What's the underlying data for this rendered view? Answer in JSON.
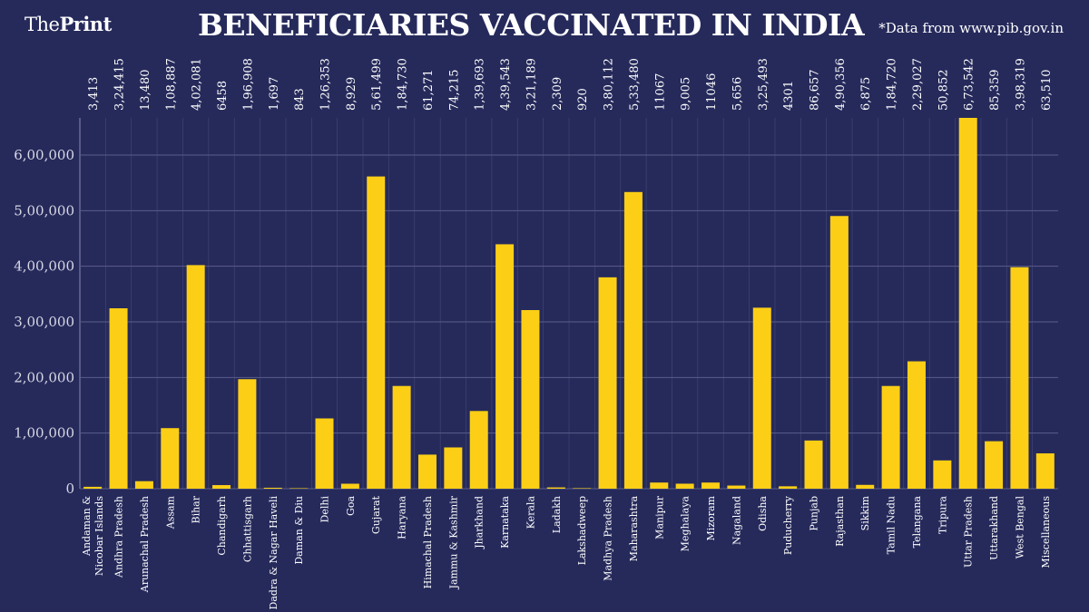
{
  "logo": {
    "thin": "The",
    "bold": "Print"
  },
  "title": "BENEFICIARIES VACCINATED IN INDIA",
  "source": "*Data from www.pib.gov.in",
  "colors": {
    "background": "#262a5b",
    "bar": "#fccf16",
    "grid": "#5a5d8a"
  },
  "chart_data": {
    "type": "bar",
    "title": "BENEFICIARIES VACCINATED IN INDIA",
    "ylim": [
      0,
      660000
    ],
    "grid": true,
    "yticks": [
      0,
      100000,
      200000,
      300000,
      400000,
      500000,
      600000
    ],
    "ytick_labels": [
      "0",
      "1,00,000",
      "2,00,000",
      "3,00,000",
      "4,00,000",
      "5,00,000",
      "6,00,000"
    ],
    "categories": [
      [
        "Andaman &",
        "Nicobar Islands"
      ],
      "Andhra Pradesh",
      "Arunachal Pradesh",
      "Assam",
      "Bihar",
      "Chandigarh",
      "Chhattisgarh",
      "Dadra & Nagar Haveli",
      "Daman & Diu",
      "Delhi",
      "Goa",
      "Gujarat",
      "Haryana",
      "Himachal Pradesh",
      "Jammu & Kashmir",
      "Jharkhand",
      "Karnataka",
      "Kerala",
      "Ladakh",
      "Lakshadweep",
      "Madhya Pradesh",
      "Maharashtra",
      "Manipur",
      "Meghalaya",
      "Mizoram",
      "Nagaland",
      "Odisha",
      "Puducherry",
      "Punjab",
      "Rajasthan",
      "Sikkim",
      "Tamil Nadu",
      "Telangana",
      "Tripura",
      "Uttar Pradesh",
      "Uttarakhand",
      "West Bengal",
      "Miscellaneous"
    ],
    "values": [
      3413,
      324415,
      13480,
      108887,
      402081,
      6458,
      196908,
      1697,
      843,
      126353,
      8929,
      561499,
      184730,
      61271,
      74215,
      139693,
      439543,
      321189,
      2309,
      920,
      380112,
      533480,
      11067,
      9005,
      11046,
      5656,
      325493,
      4301,
      86657,
      490356,
      6875,
      184720,
      229027,
      50852,
      673542,
      85359,
      398319,
      63510
    ],
    "value_labels": [
      "3,413",
      "3,24,415",
      "13,480",
      "1,08,887",
      "4,02,081",
      "6458",
      "1,96,908",
      "1,697",
      "843",
      "1,26,353",
      "8,929",
      "5,61,499",
      "1,84,730",
      "61,271",
      "74,215",
      "1,39,693",
      "4,39,543",
      "3,21,189",
      "2,309",
      "920",
      "3,80,112",
      "5,33,480",
      "11067",
      "9,005",
      "11046",
      "5,656",
      "3,25,493",
      "4301",
      "86,657",
      "4,90,356",
      "6,875",
      "1,84,720",
      "2,29,027",
      "50,852",
      "6,73,542",
      "85,359",
      "3,98,319",
      "63,510"
    ]
  }
}
